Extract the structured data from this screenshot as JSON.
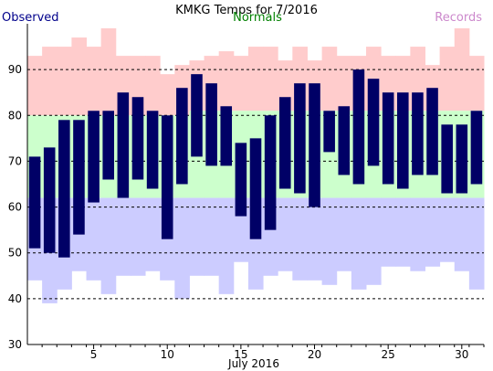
{
  "chart_data": {
    "type": "bar",
    "title": "KMKG Temps for 7/2016",
    "legend": {
      "observed": {
        "label": "Observed",
        "color": "#00008b"
      },
      "normals": {
        "label": "Normals",
        "color": "#008000"
      },
      "records": {
        "label": "Records",
        "color": "#cc88cc"
      }
    },
    "xlabel": "July 2016",
    "xlim": [
      1,
      31
    ],
    "x_ticks": [
      5,
      10,
      15,
      20,
      25,
      30
    ],
    "ylim": [
      30,
      100
    ],
    "y_ticks": [
      30,
      40,
      50,
      60,
      70,
      80,
      90
    ],
    "grid": {
      "y_dashed": [
        40,
        50,
        60,
        70,
        80,
        90
      ]
    },
    "colors": {
      "record_high_fill": "#ffcccc",
      "normal_fill": "#ccffcc",
      "record_low_fill": "#ccccff",
      "observed_bar": "#000066"
    },
    "days": [
      1,
      2,
      3,
      4,
      5,
      6,
      7,
      8,
      9,
      10,
      11,
      12,
      13,
      14,
      15,
      16,
      17,
      18,
      19,
      20,
      21,
      22,
      23,
      24,
      25,
      26,
      27,
      28,
      29,
      30,
      31
    ],
    "observed_high": [
      71,
      73,
      79,
      79,
      81,
      81,
      85,
      84,
      81,
      80,
      86,
      89,
      87,
      82,
      74,
      75,
      80,
      84,
      87,
      87,
      81,
      82,
      90,
      88,
      85,
      85,
      85,
      86,
      78,
      78,
      81
    ],
    "observed_low": [
      51,
      50,
      49,
      54,
      61,
      66,
      62,
      66,
      64,
      53,
      65,
      71,
      69,
      69,
      58,
      53,
      55,
      64,
      63,
      60,
      72,
      67,
      65,
      69,
      65,
      64,
      67,
      67,
      63,
      63,
      65
    ],
    "normal_high": [
      80,
      80,
      80,
      80,
      80,
      80,
      80,
      80,
      80,
      80,
      80,
      81,
      81,
      81,
      81,
      81,
      81,
      81,
      81,
      81,
      81,
      81,
      81,
      81,
      81,
      81,
      81,
      81,
      81,
      81,
      81
    ],
    "normal_low": [
      62,
      62,
      62,
      62,
      62,
      62,
      62,
      62,
      62,
      62,
      62,
      62,
      62,
      62,
      62,
      62,
      62,
      62,
      62,
      62,
      62,
      62,
      62,
      62,
      62,
      62,
      62,
      62,
      62,
      62,
      62
    ],
    "record_high": [
      93,
      95,
      95,
      97,
      95,
      99,
      93,
      93,
      93,
      89,
      91,
      92,
      93,
      94,
      93,
      95,
      95,
      92,
      95,
      92,
      95,
      93,
      93,
      95,
      93,
      93,
      95,
      91,
      95,
      99,
      93
    ],
    "record_low": [
      44,
      39,
      42,
      46,
      44,
      41,
      45,
      45,
      46,
      44,
      40,
      45,
      45,
      41,
      48,
      42,
      45,
      46,
      44,
      44,
      43,
      46,
      42,
      43,
      47,
      47,
      46,
      47,
      48,
      46,
      42
    ]
  }
}
